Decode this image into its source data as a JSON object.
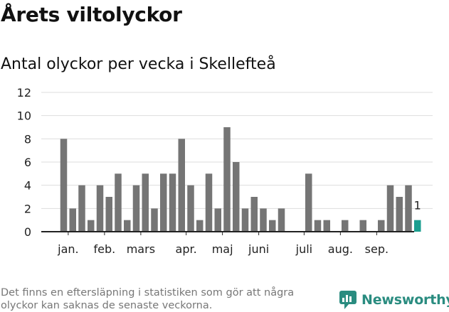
{
  "header": {
    "title": "Årets viltolyckor",
    "subtitle": "Antal olyckor per vecka i Skellefteå"
  },
  "footer": {
    "note": "Det finns en eftersläpning i statistiken som gör att några olyckor kan saknas de senaste veckorna.",
    "brand": "Newsworthy",
    "brand_icon": "newsworthy-logo-icon"
  },
  "colors": {
    "bar": "#757575",
    "highlight": "#1a9e8f",
    "grid": "#dddddd",
    "axis": "#222222",
    "brand": "#2a8c80"
  },
  "chart_data": {
    "type": "bar",
    "title": "Antal olyckor per vecka i Skellefteå",
    "xlabel": "",
    "ylabel": "",
    "ylim": [
      0,
      12
    ],
    "yticks": [
      0,
      2,
      4,
      6,
      8,
      10,
      12
    ],
    "grid": true,
    "weeks": [
      1,
      2,
      3,
      4,
      5,
      6,
      7,
      8,
      9,
      10,
      11,
      12,
      13,
      14,
      15,
      16,
      17,
      18,
      19,
      20,
      21,
      22,
      23,
      24,
      25,
      26,
      27,
      28,
      29,
      30,
      31,
      32,
      33,
      34,
      35,
      36,
      37,
      38,
      39,
      40
    ],
    "values": [
      8,
      2,
      4,
      1,
      4,
      3,
      5,
      1,
      4,
      5,
      2,
      5,
      5,
      8,
      4,
      1,
      5,
      2,
      9,
      6,
      2,
      3,
      2,
      1,
      2,
      0,
      0,
      5,
      1,
      1,
      0,
      1,
      0,
      1,
      0,
      1,
      4,
      3,
      4,
      1
    ],
    "highlight_index": 39,
    "highlight_label": "1",
    "month_labels": [
      {
        "label": "jan.",
        "week": 1.5
      },
      {
        "label": "feb.",
        "week": 5.5
      },
      {
        "label": "mars",
        "week": 9.5
      },
      {
        "label": "apr.",
        "week": 14.5
      },
      {
        "label": "maj",
        "week": 18.5
      },
      {
        "label": "juni",
        "week": 22.5
      },
      {
        "label": "juli",
        "week": 27.5
      },
      {
        "label": "aug.",
        "week": 31.5
      },
      {
        "label": "sep.",
        "week": 35.5
      }
    ]
  }
}
